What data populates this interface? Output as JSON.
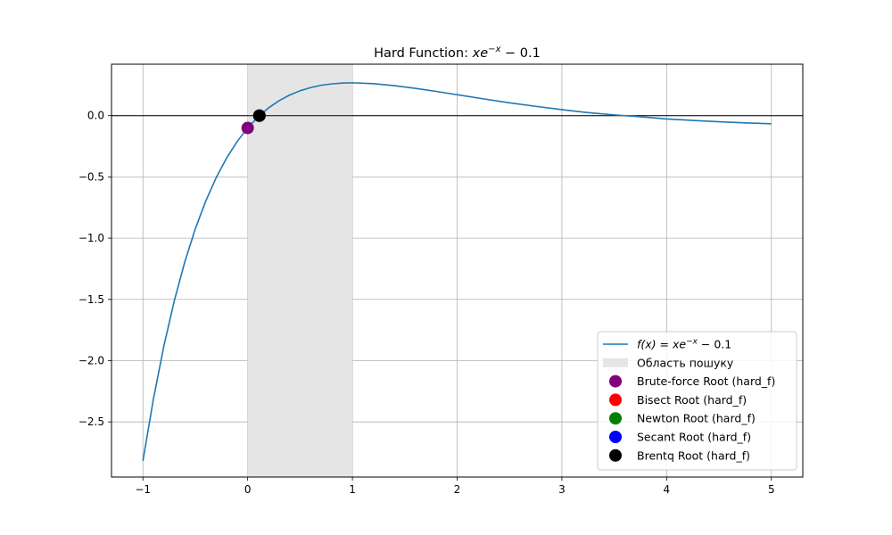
{
  "chart_data": {
    "type": "line",
    "title": "Hard Function: xe^{-x} − 0.1",
    "title_parts": {
      "prefix": "Hard Function: ",
      "base": "xe",
      "sup": "−x",
      "suffix": " − 0.1"
    },
    "xlabel": "",
    "ylabel": "",
    "xlim": [
      -1.3,
      5.3
    ],
    "ylim": [
      -2.95,
      0.42
    ],
    "xticks": [
      -1,
      0,
      1,
      2,
      3,
      4,
      5
    ],
    "xtick_labels": [
      "−1",
      "0",
      "1",
      "2",
      "3",
      "4",
      "5"
    ],
    "yticks": [
      0.0,
      -0.5,
      -1.0,
      -1.5,
      -2.0,
      -2.5
    ],
    "ytick_labels": [
      "0.0",
      "−0.5",
      "−1.0",
      "−1.5",
      "−2.0",
      "−2.5"
    ],
    "grid": true,
    "legend_position": "lower-right",
    "function_series": {
      "name": "f(x) = xe^{-x} − 0.1",
      "color": "#1f77b4",
      "x": [
        -1.0,
        -0.9,
        -0.8,
        -0.7,
        -0.6,
        -0.5,
        -0.4,
        -0.3,
        -0.2,
        -0.1,
        0.0,
        0.1,
        0.2,
        0.3,
        0.4,
        0.5,
        0.6,
        0.7,
        0.8,
        0.9,
        1.0,
        1.2,
        1.4,
        1.6,
        1.8,
        2.0,
        2.25,
        2.5,
        2.75,
        3.0,
        3.25,
        3.5,
        3.75,
        4.0,
        4.25,
        4.5,
        4.75,
        5.0
      ],
      "y": [
        -2.818,
        -2.314,
        -1.88,
        -1.51,
        -1.193,
        -0.924,
        -0.697,
        -0.505,
        -0.344,
        -0.211,
        -0.1,
        -0.01,
        0.064,
        0.122,
        0.168,
        0.203,
        0.229,
        0.248,
        0.259,
        0.266,
        0.268,
        0.261,
        0.245,
        0.223,
        0.198,
        0.171,
        0.137,
        0.105,
        0.076,
        0.049,
        0.025,
        0.006,
        -0.009,
        -0.027,
        -0.039,
        -0.05,
        -0.059,
        -0.066
      ]
    },
    "reference_line": {
      "y": 0.0,
      "color": "#000000"
    },
    "search_region": {
      "name": "Область пошуку",
      "x": [
        0,
        1
      ],
      "color": "#e5e5e5"
    },
    "roots": [
      {
        "name": "Brute-force Root (hard_f)",
        "x": 0.0,
        "y": -0.1,
        "color": "#800080"
      },
      {
        "name": "Bisect Root (hard_f)",
        "x": 0.1118,
        "y": 0.0,
        "color": "#ff0000"
      },
      {
        "name": "Newton Root (hard_f)",
        "x": 0.1118,
        "y": 0.0,
        "color": "#008000"
      },
      {
        "name": "Secant Root (hard_f)",
        "x": 0.1118,
        "y": 0.0,
        "color": "#0000ff"
      },
      {
        "name": "Brentq Root (hard_f)",
        "x": 0.1118,
        "y": 0.0,
        "color": "#000000"
      }
    ],
    "legend": {
      "function_label": {
        "prefix": "f(x) = xe",
        "sup": "−x",
        "suffix": " − 0.1"
      }
    }
  }
}
